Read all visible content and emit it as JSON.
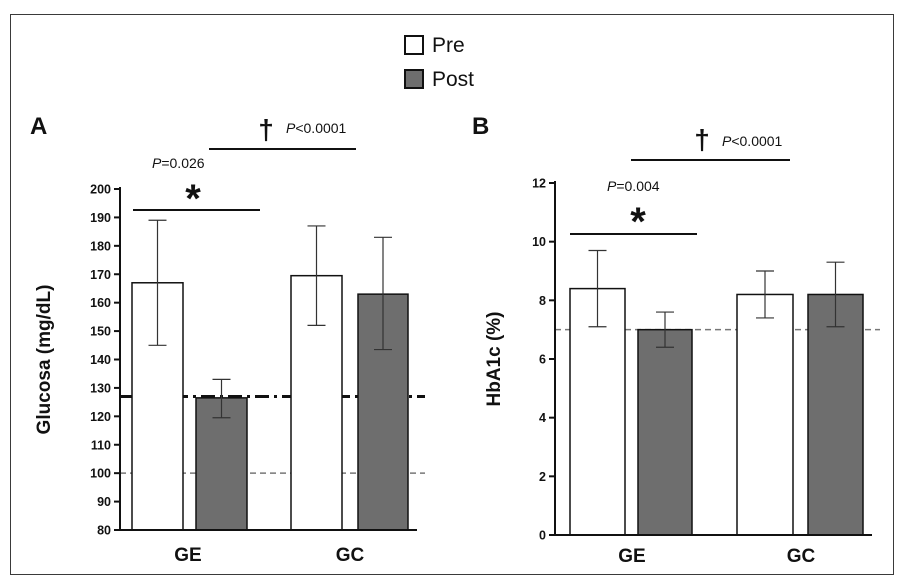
{
  "legend": {
    "items": [
      {
        "label": "Pre",
        "color": "#ffffff"
      },
      {
        "label": "Post",
        "color": "#6e6e6e"
      }
    ]
  },
  "colors": {
    "pre_fill": "#ffffff",
    "post_fill": "#6e6e6e",
    "outline": "#111111"
  },
  "chart_data": [
    {
      "panel": "A",
      "type": "bar",
      "categories": [
        "GE",
        "GC"
      ],
      "ylabel": "Glucosa (mg/dL)",
      "ylim": [
        80,
        200
      ],
      "yticks": [
        80,
        90,
        100,
        110,
        120,
        130,
        140,
        150,
        160,
        170,
        180,
        190,
        200
      ],
      "series": [
        {
          "name": "Pre",
          "values": [
            167,
            169.5
          ],
          "err_low": [
            145,
            152
          ],
          "err_high": [
            189,
            187
          ]
        },
        {
          "name": "Post",
          "values": [
            126.5,
            163
          ],
          "err_low": [
            119.5,
            143.5
          ],
          "err_high": [
            133,
            183
          ]
        }
      ],
      "reference_lines": [
        {
          "y": 100,
          "style": "dashed"
        },
        {
          "y": 127,
          "style": "dash-dot"
        }
      ],
      "annotations": {
        "within": {
          "p_prefix": "P",
          "p_text": "=0.026",
          "symbol": "*"
        },
        "between": {
          "p_prefix": "P",
          "p_text": "<0.0001",
          "symbol": "†"
        }
      }
    },
    {
      "panel": "B",
      "type": "bar",
      "categories": [
        "GE",
        "GC"
      ],
      "ylabel": "HbA1c (%)",
      "ylim": [
        0,
        12
      ],
      "yticks": [
        0,
        2,
        4,
        6,
        8,
        10,
        12
      ],
      "series": [
        {
          "name": "Pre",
          "values": [
            8.4,
            8.2
          ],
          "err_low": [
            7.1,
            7.4
          ],
          "err_high": [
            9.7,
            9.0
          ]
        },
        {
          "name": "Post",
          "values": [
            7.0,
            8.2
          ],
          "err_low": [
            6.4,
            7.1
          ],
          "err_high": [
            7.6,
            9.3
          ]
        }
      ],
      "reference_lines": [
        {
          "y": 7,
          "style": "dashed"
        }
      ],
      "annotations": {
        "within": {
          "p_prefix": "P",
          "p_text": "=0.004",
          "symbol": "*"
        },
        "between": {
          "p_prefix": "P",
          "p_text": "<0.0001",
          "symbol": "†"
        }
      }
    }
  ]
}
